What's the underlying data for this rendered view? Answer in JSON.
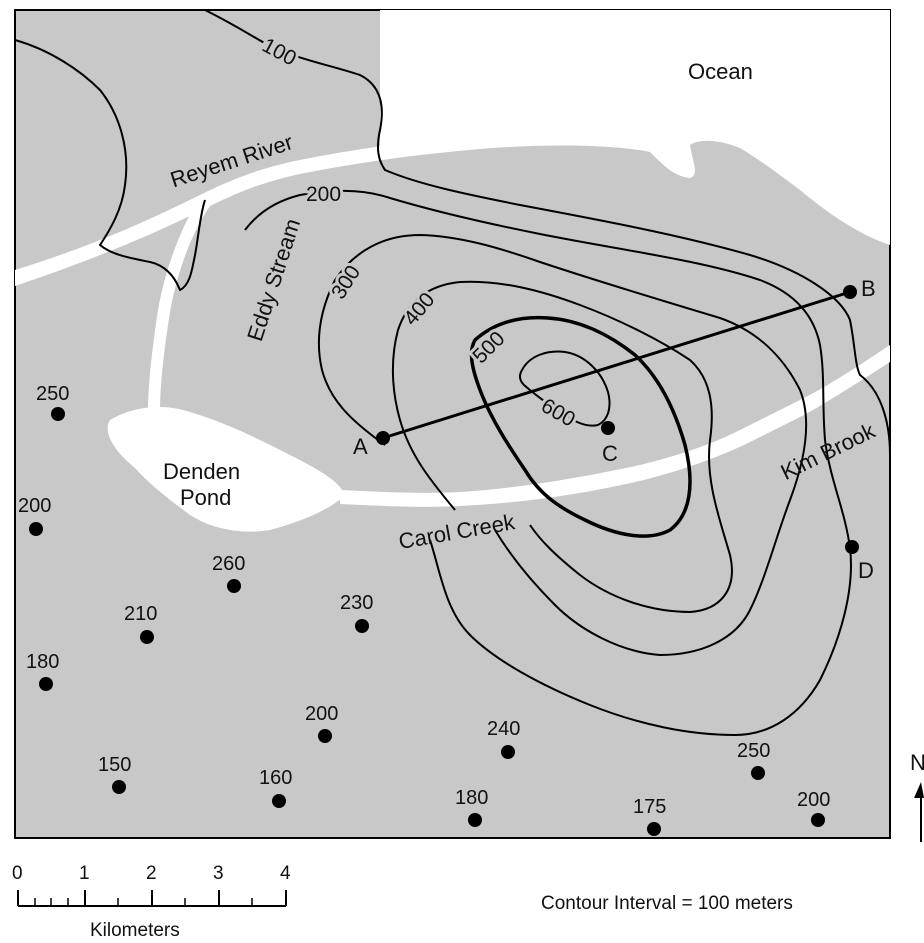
{
  "labels": {
    "ocean": "Ocean",
    "reyem_river": "Reyem River",
    "eddy_stream": "Eddy Stream",
    "denden_pond_line1": "Denden",
    "denden_pond_line2": "Pond",
    "carol_creek": "Carol Creek",
    "kim_brook": "Kim Brook"
  },
  "contours": [
    "100",
    "200",
    "300",
    "400",
    "500",
    "600"
  ],
  "points": {
    "A": "A",
    "B": "B",
    "C": "C",
    "D": "D"
  },
  "spot_elevations": [
    "250",
    "200",
    "260",
    "210",
    "230",
    "180",
    "200",
    "240",
    "150",
    "160",
    "180",
    "175",
    "250",
    "200"
  ],
  "north": "N",
  "scale": {
    "ticks": [
      "0",
      "1",
      "2",
      "3",
      "4"
    ],
    "unit": "Kilometers"
  },
  "contour_interval": "Contour Interval = 100 meters",
  "colors": {
    "land": "#c8c8c8",
    "water": "#ffffff",
    "lines": "#000000"
  }
}
